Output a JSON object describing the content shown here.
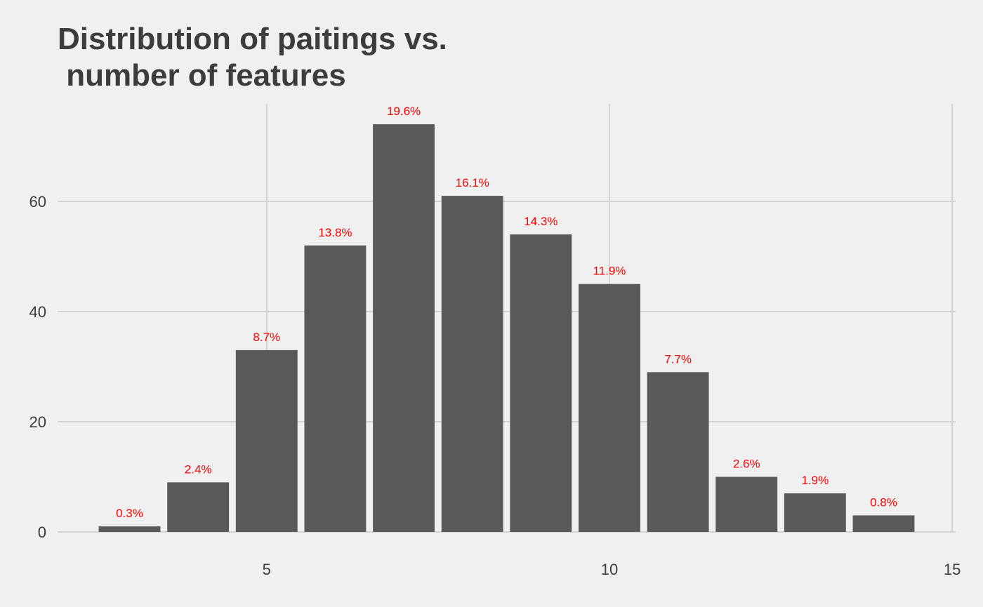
{
  "colors": {
    "background": "#f0f0f0",
    "bar": "#595959",
    "grid": "#d2d2d2",
    "label": "#ff0000",
    "text": "#3c3c3c"
  },
  "chart_data": {
    "type": "bar",
    "title": "Distribution of paitings vs.\n number of features",
    "xlabel": "",
    "ylabel": "",
    "x": [
      3,
      4,
      5,
      6,
      7,
      8,
      9,
      10,
      11,
      12,
      13,
      14
    ],
    "values": [
      1,
      9,
      33,
      52,
      74,
      61,
      54,
      45,
      29,
      10,
      7,
      3
    ],
    "data_labels": [
      "0.3%",
      "2.4%",
      "8.7%",
      "13.8%",
      "19.6%",
      "16.1%",
      "14.3%",
      "11.9%",
      "7.7%",
      "2.6%",
      "1.9%",
      "0.8%"
    ],
    "xlim": [
      1.95,
      15.05
    ],
    "ylim": [
      0,
      77.7
    ],
    "x_ticks": [
      5,
      10,
      15
    ],
    "x_tick_labels": [
      "5",
      "10",
      "15"
    ],
    "y_ticks": [
      0,
      20,
      40,
      60
    ],
    "y_tick_labels": [
      "0",
      "20",
      "40",
      "60"
    ],
    "bar_width": 0.9,
    "grid": true,
    "legend": "none"
  }
}
